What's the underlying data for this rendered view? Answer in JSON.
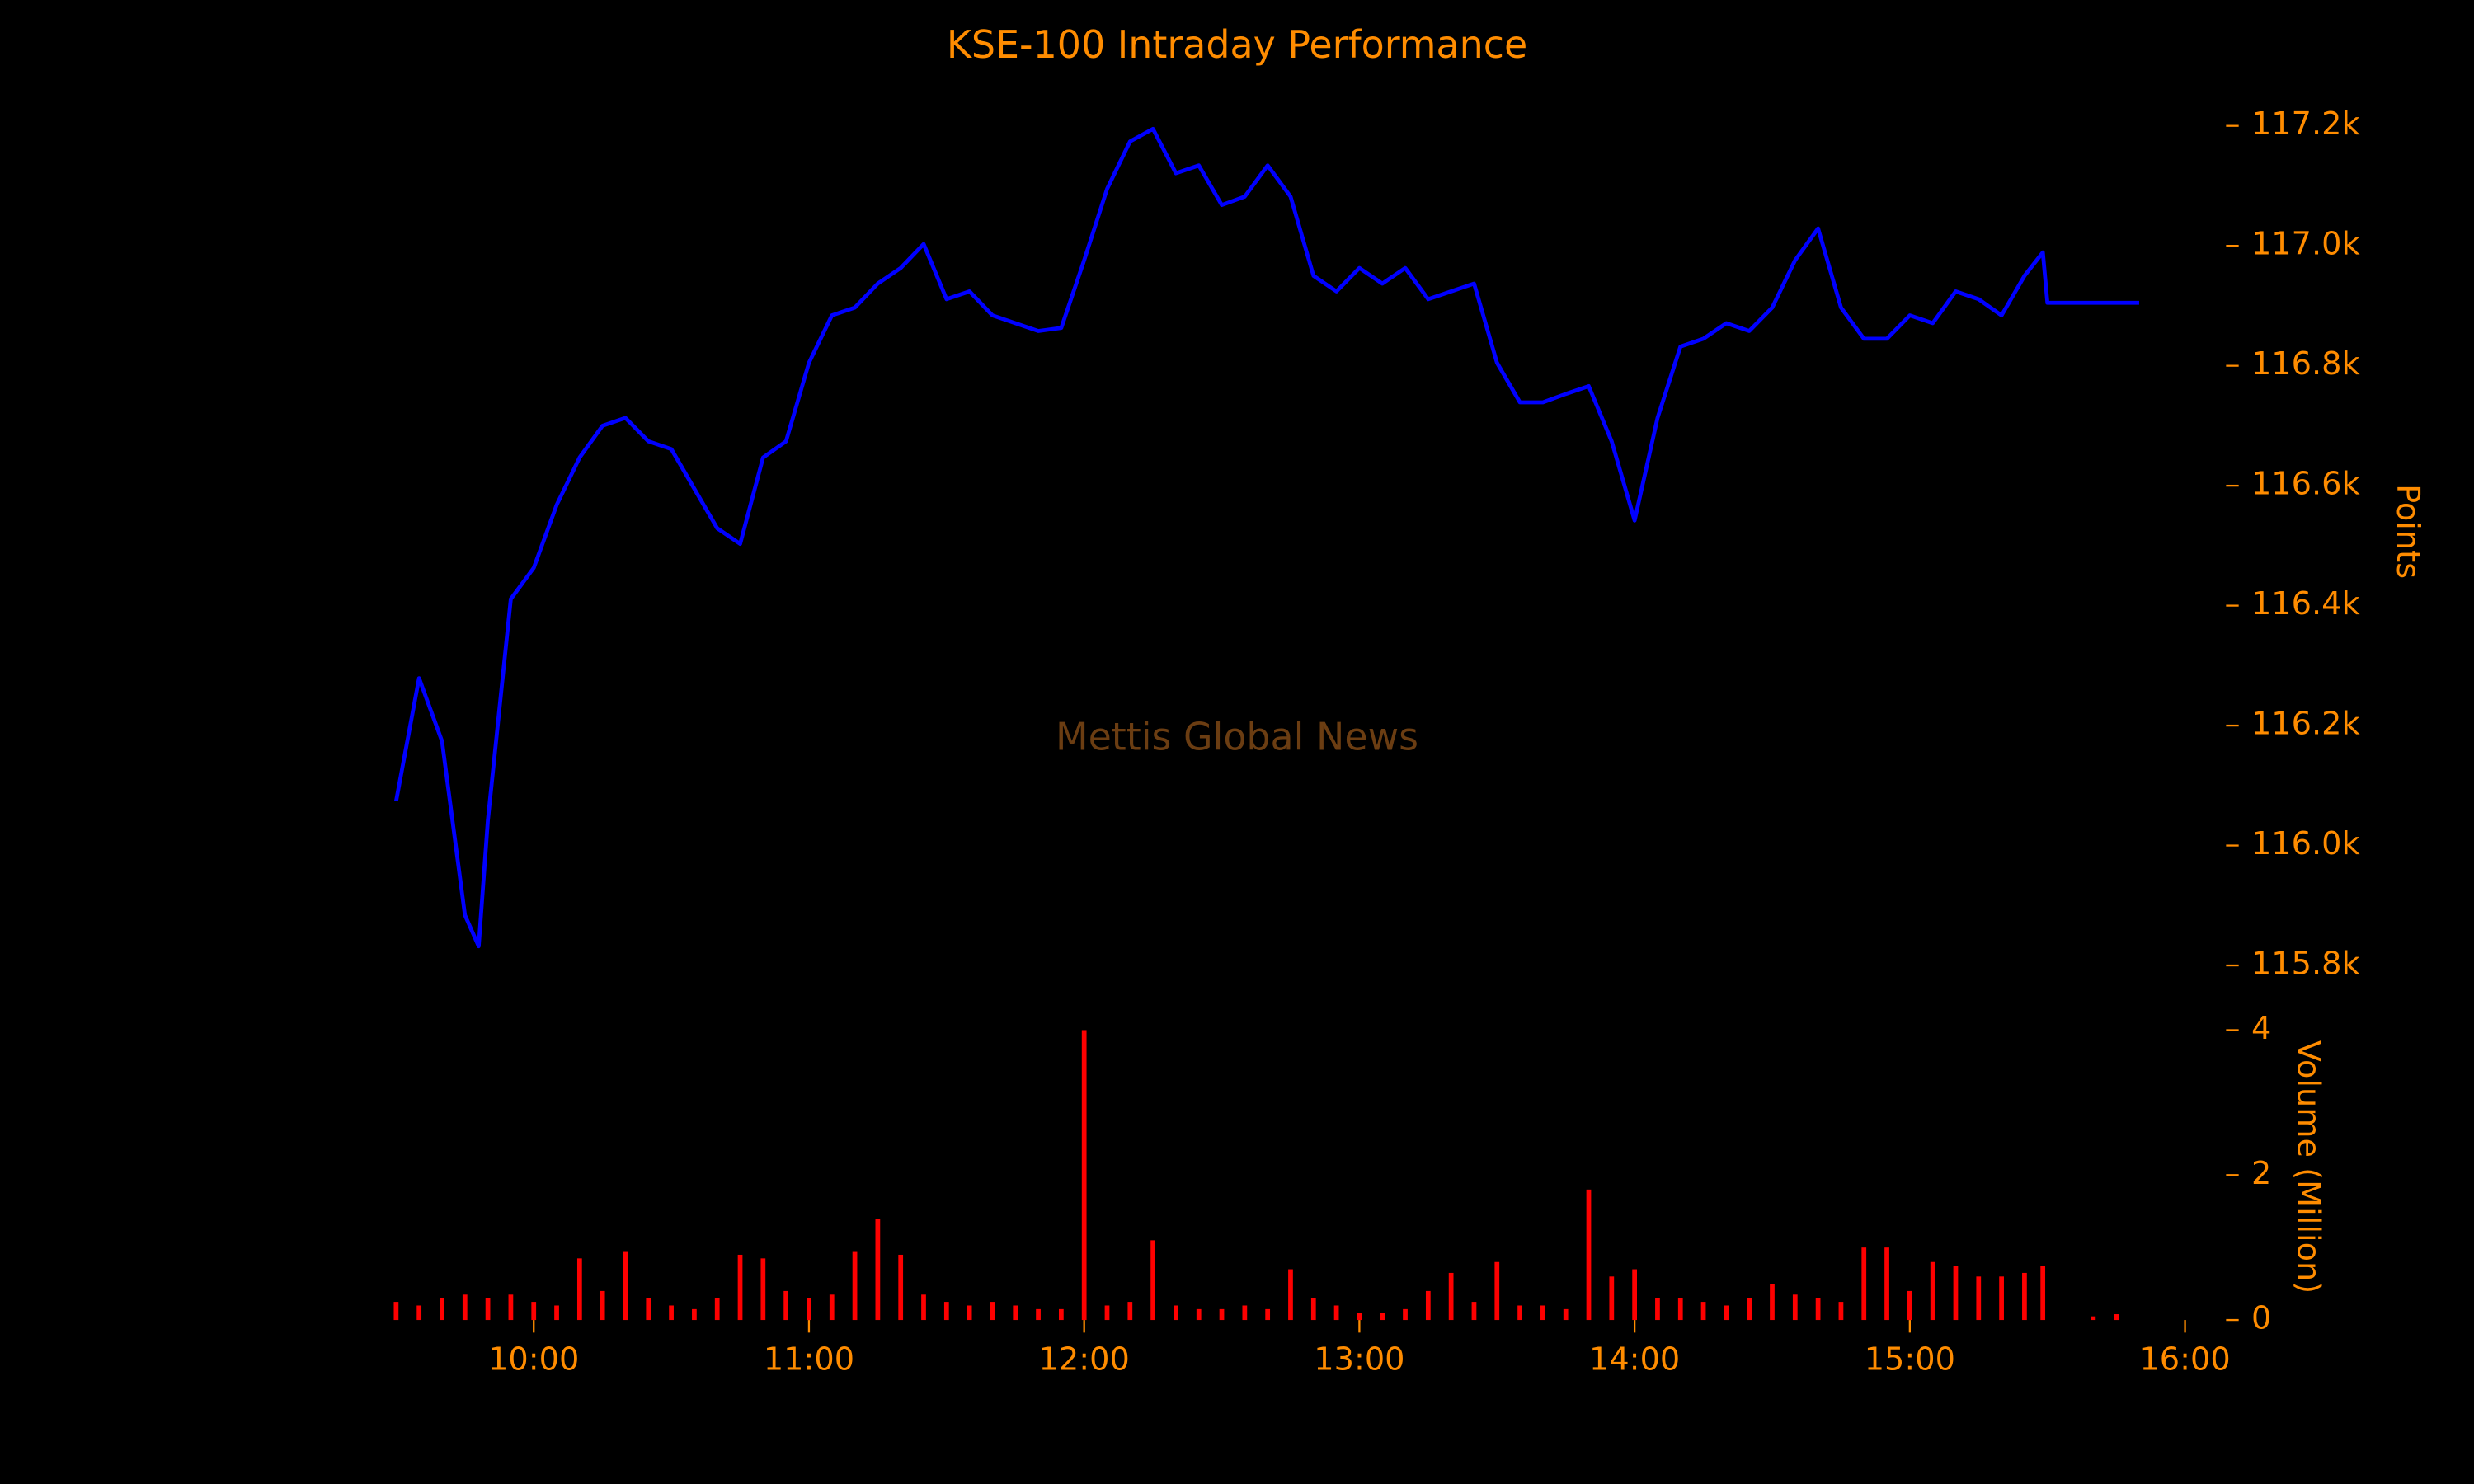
{
  "chart_data": [
    {
      "type": "line",
      "title": "KSE-100 Intraday Performance",
      "watermark": "Mettis Global News",
      "ylabel": "Points",
      "xlim": [
        "09:23",
        "16:03"
      ],
      "ylim": [
        115740,
        117260
      ],
      "yticks": [
        {
          "value": 115800,
          "label": "115.8k"
        },
        {
          "value": 116000,
          "label": "116.0k"
        },
        {
          "value": 116200,
          "label": "116.2k"
        },
        {
          "value": 116400,
          "label": "116.4k"
        },
        {
          "value": 116600,
          "label": "116.6k"
        },
        {
          "value": 116800,
          "label": "116.8k"
        },
        {
          "value": 117000,
          "label": "117.0k"
        },
        {
          "value": 117200,
          "label": "117.2k"
        }
      ],
      "x": [
        "09:30",
        "09:35",
        "09:40",
        "09:45",
        "09:48",
        "09:50",
        "09:55",
        "10:00",
        "10:05",
        "10:10",
        "10:15",
        "10:20",
        "10:25",
        "10:30",
        "10:35",
        "10:40",
        "10:45",
        "10:50",
        "10:55",
        "11:00",
        "11:05",
        "11:10",
        "11:15",
        "11:20",
        "11:25",
        "11:30",
        "11:35",
        "11:40",
        "11:45",
        "11:50",
        "11:55",
        "12:00",
        "12:05",
        "12:10",
        "12:15",
        "12:20",
        "12:25",
        "12:30",
        "12:35",
        "12:40",
        "12:45",
        "12:50",
        "12:55",
        "13:00",
        "13:05",
        "13:10",
        "13:15",
        "13:20",
        "13:25",
        "13:30",
        "13:35",
        "13:40",
        "13:45",
        "13:50",
        "13:55",
        "14:00",
        "14:05",
        "14:10",
        "14:15",
        "14:20",
        "14:25",
        "14:30",
        "14:35",
        "14:40",
        "14:45",
        "14:50",
        "14:55",
        "15:00",
        "15:05",
        "15:10",
        "15:15",
        "15:20",
        "15:25",
        "15:29",
        "15:30",
        "15:50"
      ],
      "series": [
        {
          "name": "KSE-100",
          "color": "#0000ff",
          "values": [
            116074,
            116279,
            116174,
            115884,
            115832,
            116042,
            116411,
            116463,
            116568,
            116647,
            116700,
            116713,
            116674,
            116661,
            116595,
            116529,
            116503,
            116647,
            116674,
            116805,
            116884,
            116897,
            116937,
            116963,
            117003,
            116911,
            116924,
            116884,
            116871,
            116858,
            116863,
            116976,
            117095,
            117174,
            117195,
            117121,
            117134,
            117068,
            117082,
            117134,
            117082,
            116950,
            116924,
            116963,
            116937,
            116963,
            116911,
            116924,
            116937,
            116805,
            116739,
            116739,
            116753,
            116766,
            116674,
            116542,
            116713,
            116832,
            116845,
            116871,
            116858,
            116897,
            116976,
            117029,
            116897,
            116845,
            116845,
            116884,
            116871,
            116924,
            116911,
            116884,
            116950,
            116989,
            116905,
            116905
          ]
        }
      ]
    },
    {
      "type": "bar",
      "ylabel": "Volume (Million)",
      "xlim": [
        "09:23",
        "16:03"
      ],
      "xticks": [
        "10:00",
        "11:00",
        "12:00",
        "13:00",
        "14:00",
        "15:00",
        "16:00"
      ],
      "ylim": [
        0,
        4.1
      ],
      "yticks": [
        0,
        2,
        4
      ],
      "x": [
        "09:30",
        "09:35",
        "09:40",
        "09:45",
        "09:50",
        "09:55",
        "10:00",
        "10:05",
        "10:10",
        "10:15",
        "10:20",
        "10:25",
        "10:30",
        "10:35",
        "10:40",
        "10:45",
        "10:50",
        "10:55",
        "11:00",
        "11:05",
        "11:10",
        "11:15",
        "11:20",
        "11:25",
        "11:30",
        "11:35",
        "11:40",
        "11:45",
        "11:50",
        "11:55",
        "12:00",
        "12:05",
        "12:10",
        "12:15",
        "12:20",
        "12:25",
        "12:30",
        "12:35",
        "12:40",
        "12:45",
        "12:50",
        "12:55",
        "13:00",
        "13:05",
        "13:10",
        "13:15",
        "13:20",
        "13:25",
        "13:30",
        "13:35",
        "13:40",
        "13:45",
        "13:50",
        "13:55",
        "14:00",
        "14:05",
        "14:10",
        "14:15",
        "14:20",
        "14:25",
        "14:30",
        "14:35",
        "14:40",
        "14:45",
        "14:50",
        "14:55",
        "15:00",
        "15:05",
        "15:10",
        "15:15",
        "15:20",
        "15:25",
        "15:29",
        "15:40",
        "15:45"
      ],
      "series": [
        {
          "name": "Volume",
          "color": "#ff0000",
          "values": [
            0.25,
            0.2,
            0.3,
            0.35,
            0.3,
            0.35,
            0.25,
            0.2,
            0.85,
            0.4,
            0.95,
            0.3,
            0.2,
            0.15,
            0.3,
            0.9,
            0.85,
            0.4,
            0.3,
            0.35,
            0.95,
            1.4,
            0.9,
            0.35,
            0.25,
            0.2,
            0.25,
            0.2,
            0.15,
            0.15,
            4.0,
            0.2,
            0.25,
            1.1,
            0.2,
            0.15,
            0.15,
            0.2,
            0.15,
            0.7,
            0.3,
            0.2,
            0.1,
            0.1,
            0.15,
            0.4,
            0.65,
            0.25,
            0.8,
            0.2,
            0.2,
            0.15,
            1.8,
            0.6,
            0.7,
            0.3,
            0.3,
            0.25,
            0.2,
            0.3,
            0.5,
            0.35,
            0.3,
            0.25,
            1.0,
            1.0,
            0.4,
            0.8,
            0.75,
            0.6,
            0.6,
            0.65,
            0.75,
            0.05,
            0.08
          ]
        }
      ]
    }
  ]
}
